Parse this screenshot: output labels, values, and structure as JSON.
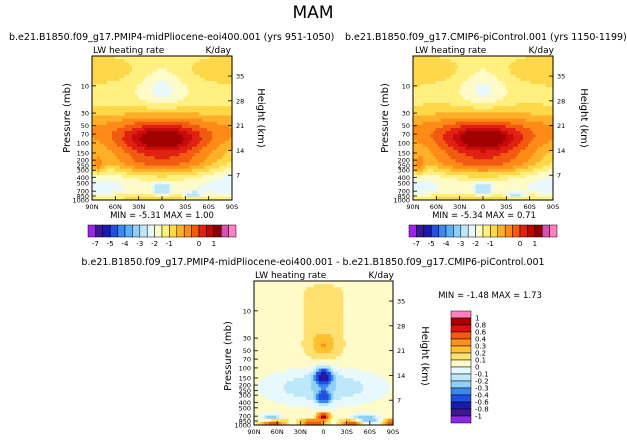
{
  "figure_title": "MAM",
  "chart_data": [
    {
      "type": "heatmap",
      "title": "b.e21.B1850.f09_g17.PMIP4-midPliocene-eoi400.001 (yrs 951-1050)",
      "variable": "LW heating rate",
      "units": "K/day",
      "stats": "MIN =  -5.31   MAX =   1.00",
      "xlabel": "",
      "ylabel": "Pressure (mb)",
      "ylabel_right": "Height (km)",
      "x_ticks": [
        "90N",
        "60N",
        "30N",
        "0",
        "30S",
        "60S",
        "90S"
      ],
      "y_ticks": [
        "10",
        "30",
        "50",
        "70",
        "100",
        "150",
        "200",
        "250",
        "300",
        "400",
        "500",
        "700",
        "850",
        "1000"
      ],
      "y_ticks_right": [
        "35",
        "28",
        "21",
        "14",
        "7"
      ],
      "ylim": [
        1000,
        3
      ],
      "colorbar_labels": [
        "-7",
        "-5",
        "-4",
        "-3",
        "-2",
        "-1",
        "0",
        "1"
      ]
    },
    {
      "type": "heatmap",
      "title": "b.e21.B1850.f09_g17.CMIP6-piControl.001 (yrs 1150-1199)",
      "variable": "LW heating rate",
      "units": "K/day",
      "stats": "MIN =  -5.34   MAX =   0.71",
      "xlabel": "",
      "ylabel": "Pressure (mb)",
      "ylabel_right": "Height (km)",
      "x_ticks": [
        "90N",
        "60N",
        "30N",
        "0",
        "30S",
        "60S",
        "90S"
      ],
      "y_ticks": [
        "10",
        "30",
        "50",
        "70",
        "100",
        "150",
        "200",
        "250",
        "300",
        "400",
        "500",
        "700",
        "850",
        "1000"
      ],
      "y_ticks_right": [
        "35",
        "28",
        "21",
        "14",
        "7"
      ],
      "ylim": [
        1000,
        3
      ],
      "colorbar_labels": [
        "-7",
        "-5",
        "-4",
        "-3",
        "-2",
        "-1",
        "0",
        "1"
      ]
    },
    {
      "type": "heatmap",
      "title": "b.e21.B1850.f09_g17.PMIP4-midPliocene-eoi400.001  -  b.e21.B1850.f09_g17.CMIP6-piControl.001",
      "variable": "LW heating rate",
      "units": "K/day",
      "stats": "MIN =  -1.48   MAX =   1.73",
      "xlabel": "",
      "ylabel": "Pressure (mb)",
      "ylabel_right": "Height (km)",
      "x_ticks": [
        "90N",
        "60N",
        "30N",
        "0",
        "30S",
        "60S",
        "90S"
      ],
      "y_ticks": [
        "10",
        "30",
        "50",
        "70",
        "100",
        "150",
        "200",
        "250",
        "300",
        "400",
        "500",
        "700",
        "850",
        "1000"
      ],
      "y_ticks_right": [
        "35",
        "28",
        "21",
        "14",
        "7"
      ],
      "ylim": [
        1000,
        3
      ],
      "colorbar_labels": [
        "1",
        "0.8",
        "0.6",
        "0.4",
        "0.3",
        "0.2",
        "0.1",
        "0",
        "-0.1",
        "-0.2",
        "-0.3",
        "-0.4",
        "-0.6",
        "-0.8",
        "-1"
      ]
    }
  ],
  "palettes": {
    "full": [
      "#a020f0",
      "#3a1890",
      "#1a1ab0",
      "#2050e0",
      "#3a88f0",
      "#5ab0f8",
      "#8ed0f8",
      "#bce8fa",
      "#e8f8ff",
      "#fffbc8",
      "#fff080",
      "#ffd84a",
      "#ffb028",
      "#ff8a18",
      "#f25a10",
      "#e02010",
      "#b80808",
      "#8a0000",
      "#d850b0",
      "#ff80c0"
    ],
    "diff": [
      "#ff80c0",
      "#aa0000",
      "#e01010",
      "#f25a10",
      "#ff9020",
      "#ffc030",
      "#ffe070",
      "#fffbc8",
      "#e8f8ff",
      "#bce8fa",
      "#8ed0f8",
      "#3a88f0",
      "#2050e0",
      "#1a1ab0",
      "#3a1890",
      "#8a2be2"
    ]
  }
}
